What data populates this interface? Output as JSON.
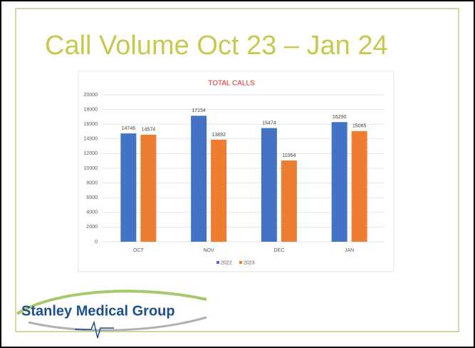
{
  "slide": {
    "title": "Call Volume Oct 23 – Jan 24",
    "logo": "Stanley Medical Group"
  },
  "chart_data": {
    "type": "bar",
    "title": "TOTAL CALLS",
    "categories": [
      "OCT",
      "NOV",
      "DEC",
      "JAN"
    ],
    "series": [
      {
        "name": "2022",
        "color": "#4472c4",
        "values": [
          14746,
          17154,
          15474,
          16290
        ]
      },
      {
        "name": "2023",
        "color": "#ed7d31",
        "values": [
          14574,
          13892,
          11064,
          15065
        ]
      }
    ],
    "ylim": [
      0,
      20000
    ],
    "yticks": [
      0,
      2000,
      4000,
      6000,
      8000,
      10000,
      12000,
      14000,
      16000,
      18000,
      20000
    ],
    "grid": true,
    "legend": "bottom",
    "data_labels": true
  }
}
